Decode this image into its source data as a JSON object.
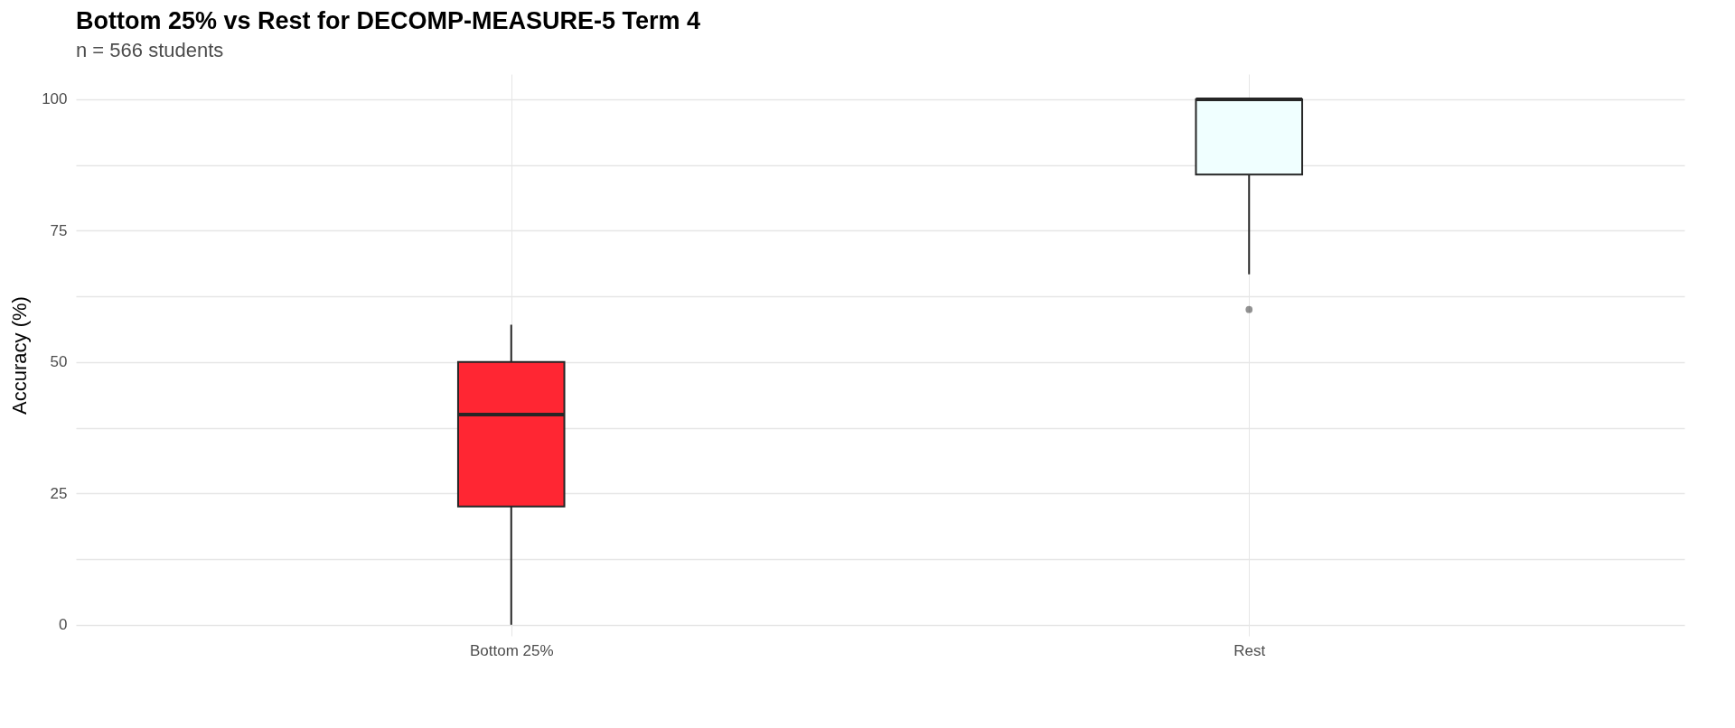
{
  "chart_data": {
    "type": "box",
    "title": "Bottom 25% vs Rest for DECOMP-MEASURE-5 Term 4",
    "subtitle": "n = 566 students",
    "ylabel": "Accuracy (%)",
    "categories": [
      "Bottom 25%",
      "Rest"
    ],
    "boxes": [
      {
        "low": 0,
        "q1": 22.5,
        "median": 40,
        "q3": 50,
        "high": 57.1
      },
      {
        "low": 66.7,
        "q1": 85.7,
        "median": 100,
        "q3": 100,
        "high": 100,
        "outliers": [
          60
        ]
      }
    ],
    "colors": [
      "#ff2633",
      "#f0ffff"
    ],
    "ylim": [
      -2.1,
      104.8
    ],
    "yticks": [
      0,
      {
        "value": 12.5,
        "label": null
      },
      25,
      {
        "value": 37.5,
        "label": null
      },
      50,
      {
        "value": 62.5,
        "label": null
      },
      75,
      {
        "value": 87.5,
        "label": null
      },
      100
    ],
    "grid": true
  }
}
